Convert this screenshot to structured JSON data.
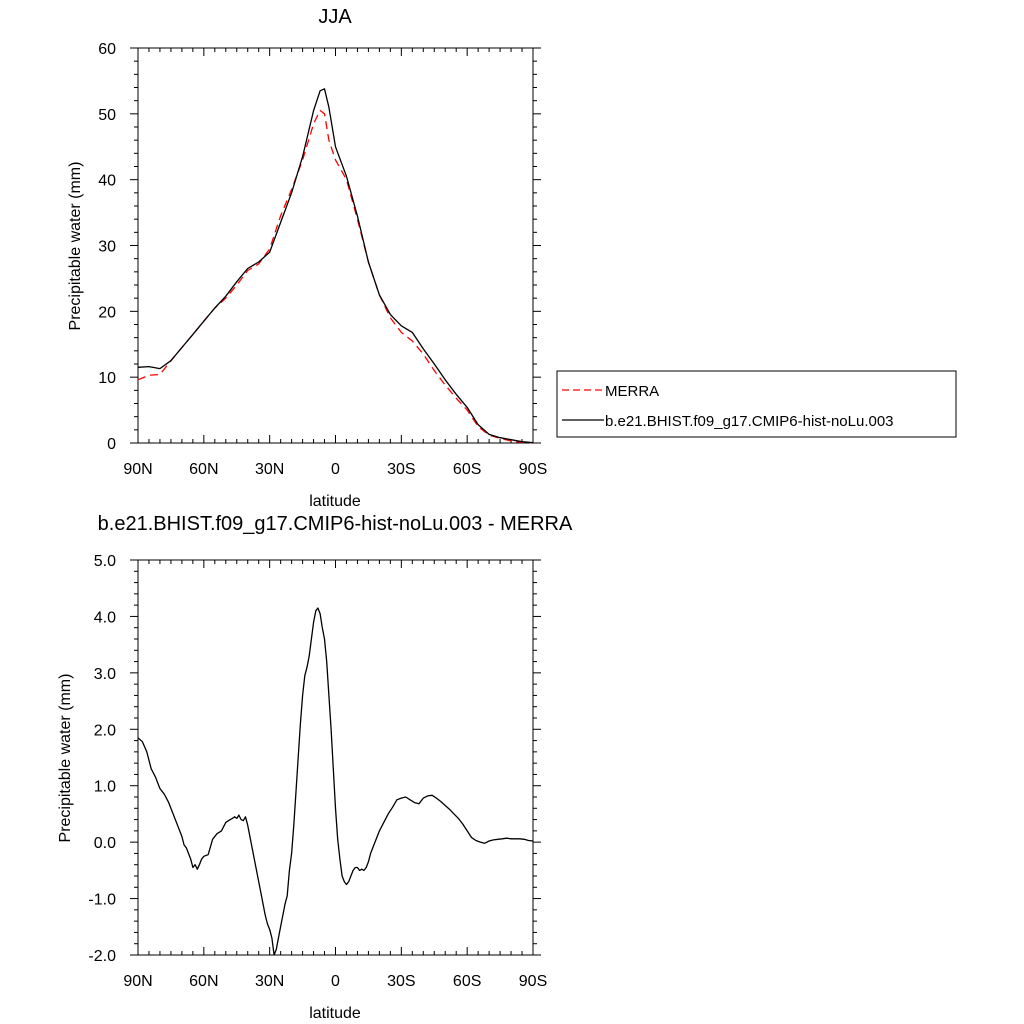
{
  "chart_data": [
    {
      "type": "line",
      "title": "JJA",
      "xlabel": "latitude",
      "ylabel": "Precipitable water (mm)",
      "xlim": [
        -90,
        90
      ],
      "ylim": [
        0,
        60
      ],
      "xticks": [
        -90,
        -60,
        -30,
        0,
        30,
        60,
        90
      ],
      "xtick_labels": [
        "90N",
        "60N",
        "30N",
        "0",
        "30S",
        "60S",
        "90S"
      ],
      "yticks": [
        0,
        10,
        20,
        30,
        40,
        50,
        60
      ],
      "ytick_labels": [
        "0",
        "10",
        "20",
        "30",
        "40",
        "50",
        "60"
      ],
      "grid": false,
      "legend": "right",
      "series": [
        {
          "name": "MERRA",
          "color": "#ff0000",
          "dash": "dashed",
          "x": [
            -90,
            -85,
            -80,
            -75,
            -70,
            -65,
            -60,
            -55,
            -50,
            -45,
            -40,
            -35,
            -30,
            -25,
            -20,
            -15,
            -10,
            -7,
            -5,
            -3,
            0,
            5,
            10,
            15,
            20,
            25,
            30,
            35,
            40,
            45,
            50,
            55,
            60,
            65,
            70,
            75,
            80,
            85,
            90
          ],
          "values": [
            9.6,
            10.3,
            10.4,
            12.5,
            14.5,
            16.5,
            18.5,
            20.5,
            22.0,
            24.0,
            26.2,
            27.2,
            29.5,
            34.5,
            38.5,
            43.0,
            48.5,
            50.5,
            50.0,
            46.0,
            43.0,
            40.0,
            34.0,
            27.5,
            22.5,
            19.0,
            16.8,
            15.5,
            13.5,
            11.0,
            8.8,
            6.8,
            5.0,
            2.5,
            1.2,
            0.7,
            0.3,
            0.1,
            0.0
          ]
        },
        {
          "name": "b.e21.BHIST.f09_g17.CMIP6-hist-noLu.003",
          "color": "#000000",
          "dash": "solid",
          "x": [
            -90,
            -85,
            -80,
            -75,
            -70,
            -65,
            -60,
            -55,
            -50,
            -45,
            -40,
            -35,
            -30,
            -25,
            -20,
            -15,
            -10,
            -7,
            -5,
            -3,
            0,
            5,
            10,
            15,
            20,
            25,
            30,
            35,
            40,
            45,
            50,
            55,
            60,
            65,
            70,
            75,
            80,
            85,
            90
          ],
          "values": [
            11.5,
            11.6,
            11.3,
            12.5,
            14.5,
            16.5,
            18.5,
            20.5,
            22.3,
            24.5,
            26.5,
            27.5,
            29.0,
            33.5,
            38.0,
            43.5,
            50.5,
            53.5,
            53.8,
            51.0,
            45.0,
            40.5,
            34.5,
            27.5,
            22.5,
            19.5,
            17.8,
            16.8,
            14.3,
            12.0,
            9.6,
            7.4,
            5.4,
            2.8,
            1.3,
            0.8,
            0.5,
            0.2,
            0.05
          ]
        }
      ]
    },
    {
      "type": "line",
      "title": "b.e21.BHIST.f09_g17.CMIP6-hist-noLu.003 - MERRA",
      "xlabel": "latitude",
      "ylabel": "Precipitable water (mm)",
      "xlim": [
        -90,
        90
      ],
      "ylim": [
        -2.0,
        5.0
      ],
      "xticks": [
        -90,
        -60,
        -30,
        0,
        30,
        60,
        90
      ],
      "xtick_labels": [
        "90N",
        "60N",
        "30N",
        "0",
        "30S",
        "60S",
        "90S"
      ],
      "yticks": [
        -2.0,
        -1.0,
        0.0,
        1.0,
        2.0,
        3.0,
        4.0,
        5.0
      ],
      "ytick_labels": [
        "-2.0",
        "-1.0",
        "0.0",
        "1.0",
        "2.0",
        "3.0",
        "4.0",
        "5.0"
      ],
      "grid": false,
      "series": [
        {
          "name": "",
          "color": "#000000",
          "dash": "solid",
          "x": [
            -90,
            -88,
            -86,
            -84,
            -82,
            -80,
            -78,
            -76,
            -74,
            -72,
            -70,
            -69,
            -68,
            -67,
            -66,
            -65,
            -64,
            -63,
            -62,
            -61,
            -60,
            -58,
            -56,
            -54,
            -52,
            -50,
            -48,
            -47,
            -46,
            -45,
            -44,
            -43,
            -42,
            -41,
            -40,
            -39,
            -38,
            -37,
            -36,
            -35,
            -34,
            -33,
            -32,
            -31,
            -30,
            -29,
            -28,
            -27,
            -26,
            -25,
            -24,
            -23,
            -22,
            -21,
            -20,
            -19,
            -18,
            -17,
            -16,
            -15,
            -14,
            -13,
            -12,
            -11,
            -10,
            -9,
            -8,
            -7,
            -6,
            -5,
            -4,
            -3,
            -2,
            -1,
            0,
            1,
            2,
            3,
            4,
            5,
            6,
            7,
            8,
            9,
            10,
            11,
            12,
            13,
            14,
            15,
            16,
            17,
            18,
            20,
            22,
            24,
            26,
            28,
            30,
            32,
            34,
            36,
            38,
            40,
            42,
            44,
            46,
            48,
            50,
            52,
            54,
            56,
            58,
            60,
            62,
            64,
            66,
            68,
            70,
            72,
            74,
            76,
            78,
            80,
            82,
            84,
            86,
            88,
            90
          ],
          "values": [
            1.85,
            1.78,
            1.6,
            1.3,
            1.15,
            0.95,
            0.85,
            0.7,
            0.5,
            0.3,
            0.1,
            -0.05,
            -0.1,
            -0.2,
            -0.3,
            -0.45,
            -0.4,
            -0.48,
            -0.4,
            -0.3,
            -0.25,
            -0.22,
            0.05,
            0.15,
            0.2,
            0.35,
            0.4,
            0.42,
            0.45,
            0.42,
            0.48,
            0.4,
            0.38,
            0.45,
            0.3,
            0.1,
            -0.1,
            -0.3,
            -0.5,
            -0.7,
            -0.9,
            -1.1,
            -1.3,
            -1.45,
            -1.55,
            -1.7,
            -2.0,
            -1.9,
            -1.7,
            -1.5,
            -1.3,
            -1.1,
            -0.95,
            -0.5,
            -0.2,
            0.3,
            0.9,
            1.5,
            2.1,
            2.6,
            2.95,
            3.1,
            3.3,
            3.6,
            3.9,
            4.1,
            4.15,
            4.05,
            3.8,
            3.6,
            3.2,
            2.6,
            2.0,
            1.3,
            0.6,
            0.05,
            -0.3,
            -0.6,
            -0.7,
            -0.75,
            -0.7,
            -0.6,
            -0.5,
            -0.45,
            -0.45,
            -0.5,
            -0.48,
            -0.5,
            -0.45,
            -0.35,
            -0.2,
            -0.1,
            0.0,
            0.2,
            0.35,
            0.5,
            0.62,
            0.75,
            0.78,
            0.8,
            0.75,
            0.7,
            0.68,
            0.78,
            0.82,
            0.83,
            0.78,
            0.72,
            0.65,
            0.58,
            0.5,
            0.42,
            0.32,
            0.2,
            0.08,
            0.03,
            0.0,
            -0.02,
            0.02,
            0.04,
            0.05,
            0.06,
            0.07,
            0.06,
            0.06,
            0.06,
            0.05,
            0.03,
            0.02
          ]
        }
      ]
    }
  ]
}
